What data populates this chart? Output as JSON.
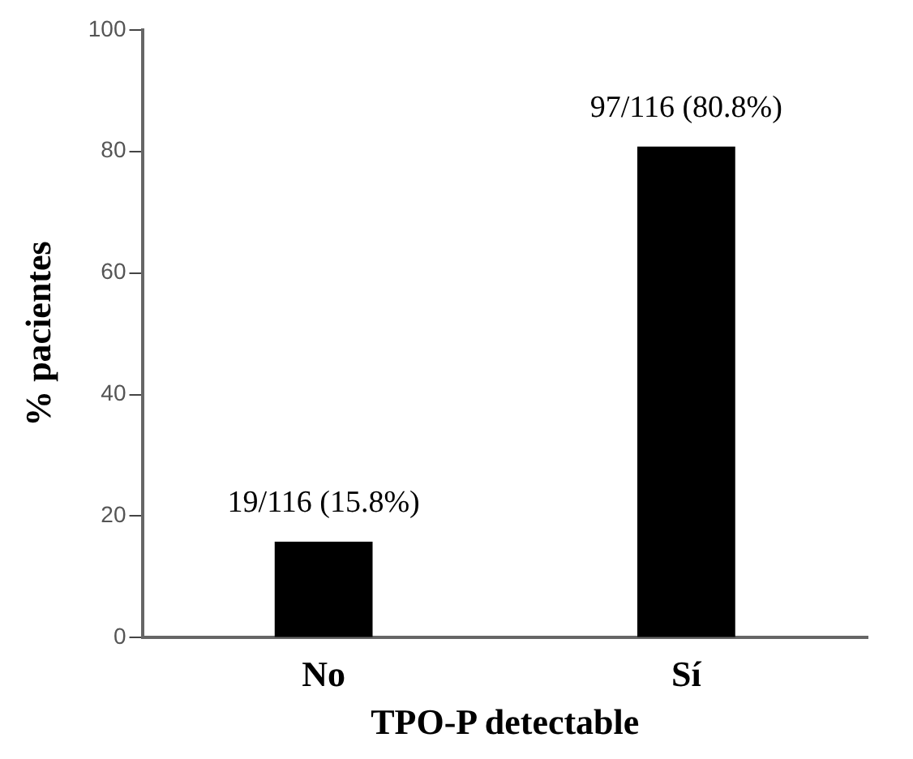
{
  "chart_data": {
    "type": "bar",
    "xlabel": "TPO-P detectable",
    "ylabel": "% pacientes",
    "categories": [
      "No",
      "Sí"
    ],
    "values": [
      15.8,
      80.8
    ],
    "value_labels": [
      "19/116 (15.8%)",
      "97/116 (80.8%)"
    ],
    "color": "#000000",
    "ylim": [
      0,
      100
    ],
    "yticks": [
      0,
      20,
      40,
      60,
      80,
      100
    ],
    "grid": false,
    "legend": false
  }
}
